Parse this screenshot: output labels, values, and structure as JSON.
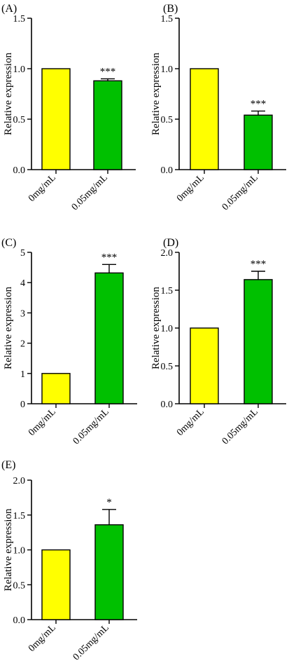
{
  "colors": {
    "control": "#ffff00",
    "treated": "#00c000",
    "axis": "#000000"
  },
  "chart_data": [
    {
      "type": "bar",
      "panel": "(A)",
      "categories": [
        "0mg/mL",
        "0.05mg/mL"
      ],
      "values": [
        1.0,
        0.88
      ],
      "errors": [
        0,
        0.02
      ],
      "significance": [
        "",
        "***"
      ],
      "ylabel": "Relative expression",
      "ylim": [
        0,
        1.5
      ],
      "yticks": [
        "0.0",
        "0.5",
        "1.0",
        "1.5"
      ],
      "grid": false
    },
    {
      "type": "bar",
      "panel": "(B)",
      "categories": [
        "0mg/mL",
        "0.05mg/mL"
      ],
      "values": [
        1.0,
        0.54
      ],
      "errors": [
        0,
        0.04
      ],
      "significance": [
        "",
        "***"
      ],
      "ylabel": "Relative expression",
      "ylim": [
        0,
        1.5
      ],
      "yticks": [
        "0.0",
        "0.5",
        "1.0",
        "1.5"
      ],
      "grid": false
    },
    {
      "type": "bar",
      "panel": "(C)",
      "categories": [
        "0mg/mL",
        "0.05mg/mL"
      ],
      "values": [
        1.0,
        4.32
      ],
      "errors": [
        0,
        0.28
      ],
      "significance": [
        "",
        "***"
      ],
      "ylabel": "Relative expression",
      "ylim": [
        0,
        5
      ],
      "yticks": [
        "0",
        "1",
        "2",
        "3",
        "4",
        "5"
      ],
      "grid": false
    },
    {
      "type": "bar",
      "panel": "(D)",
      "categories": [
        "0mg/mL",
        "0.05mg/mL"
      ],
      "values": [
        1.0,
        1.64
      ],
      "errors": [
        0,
        0.11
      ],
      "significance": [
        "",
        "***"
      ],
      "ylabel": "Relative expression",
      "ylim": [
        0,
        2.0
      ],
      "yticks": [
        "0.0",
        "0.5",
        "1.0",
        "1.5",
        "2.0"
      ],
      "grid": false
    },
    {
      "type": "bar",
      "panel": "(E)",
      "categories": [
        "0mg/mL",
        "0.05mg/mL"
      ],
      "values": [
        1.0,
        1.36
      ],
      "errors": [
        0,
        0.22
      ],
      "significance": [
        "",
        "*"
      ],
      "ylabel": "Relative expression",
      "ylim": [
        0,
        2.0
      ],
      "yticks": [
        "0.0",
        "0.5",
        "1.0",
        "1.5",
        "2.0"
      ],
      "grid": false
    }
  ]
}
